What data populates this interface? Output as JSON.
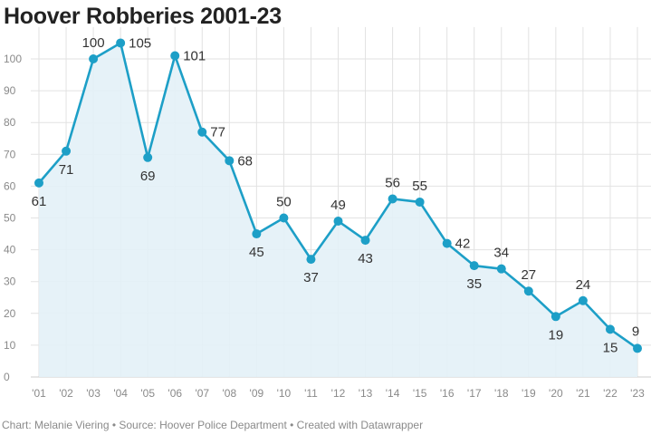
{
  "colors": {
    "line": "#1d9fc7",
    "area": "#e3f1f7",
    "grid": "#e2e2e2",
    "text": "#222222",
    "muted": "#8a8a8a"
  },
  "footer": {
    "text": "Chart: Melanie Viering • Source: Hoover Police Department • Created with Datawrapper"
  },
  "chart_data": {
    "type": "area",
    "title": "Hoover Robberies 2001-23",
    "xlabel": "",
    "ylabel": "",
    "categories": [
      "'01",
      "'02",
      "'03",
      "'04",
      "'05",
      "'06",
      "'07",
      "'08",
      "'09",
      "'10",
      "'11",
      "'12",
      "'13",
      "'14",
      "'15",
      "'16",
      "'17",
      "'18",
      "'19",
      "'20",
      "'21",
      "'22",
      "'23"
    ],
    "values": [
      61,
      71,
      100,
      105,
      69,
      101,
      77,
      68,
      45,
      50,
      37,
      49,
      43,
      56,
      55,
      42,
      35,
      34,
      27,
      19,
      24,
      15,
      9
    ],
    "label_positions": [
      "below",
      "below",
      "above",
      "right",
      "below",
      "right",
      "right",
      "right",
      "below",
      "above",
      "below",
      "above",
      "below",
      "above",
      "above",
      "right",
      "below",
      "above",
      "above",
      "below",
      "above",
      "below",
      "above"
    ],
    "yticks": [
      0,
      10,
      20,
      30,
      40,
      50,
      60,
      70,
      80,
      90,
      100
    ],
    "ylim": [
      0,
      110
    ],
    "grid": true,
    "legend": "none"
  }
}
